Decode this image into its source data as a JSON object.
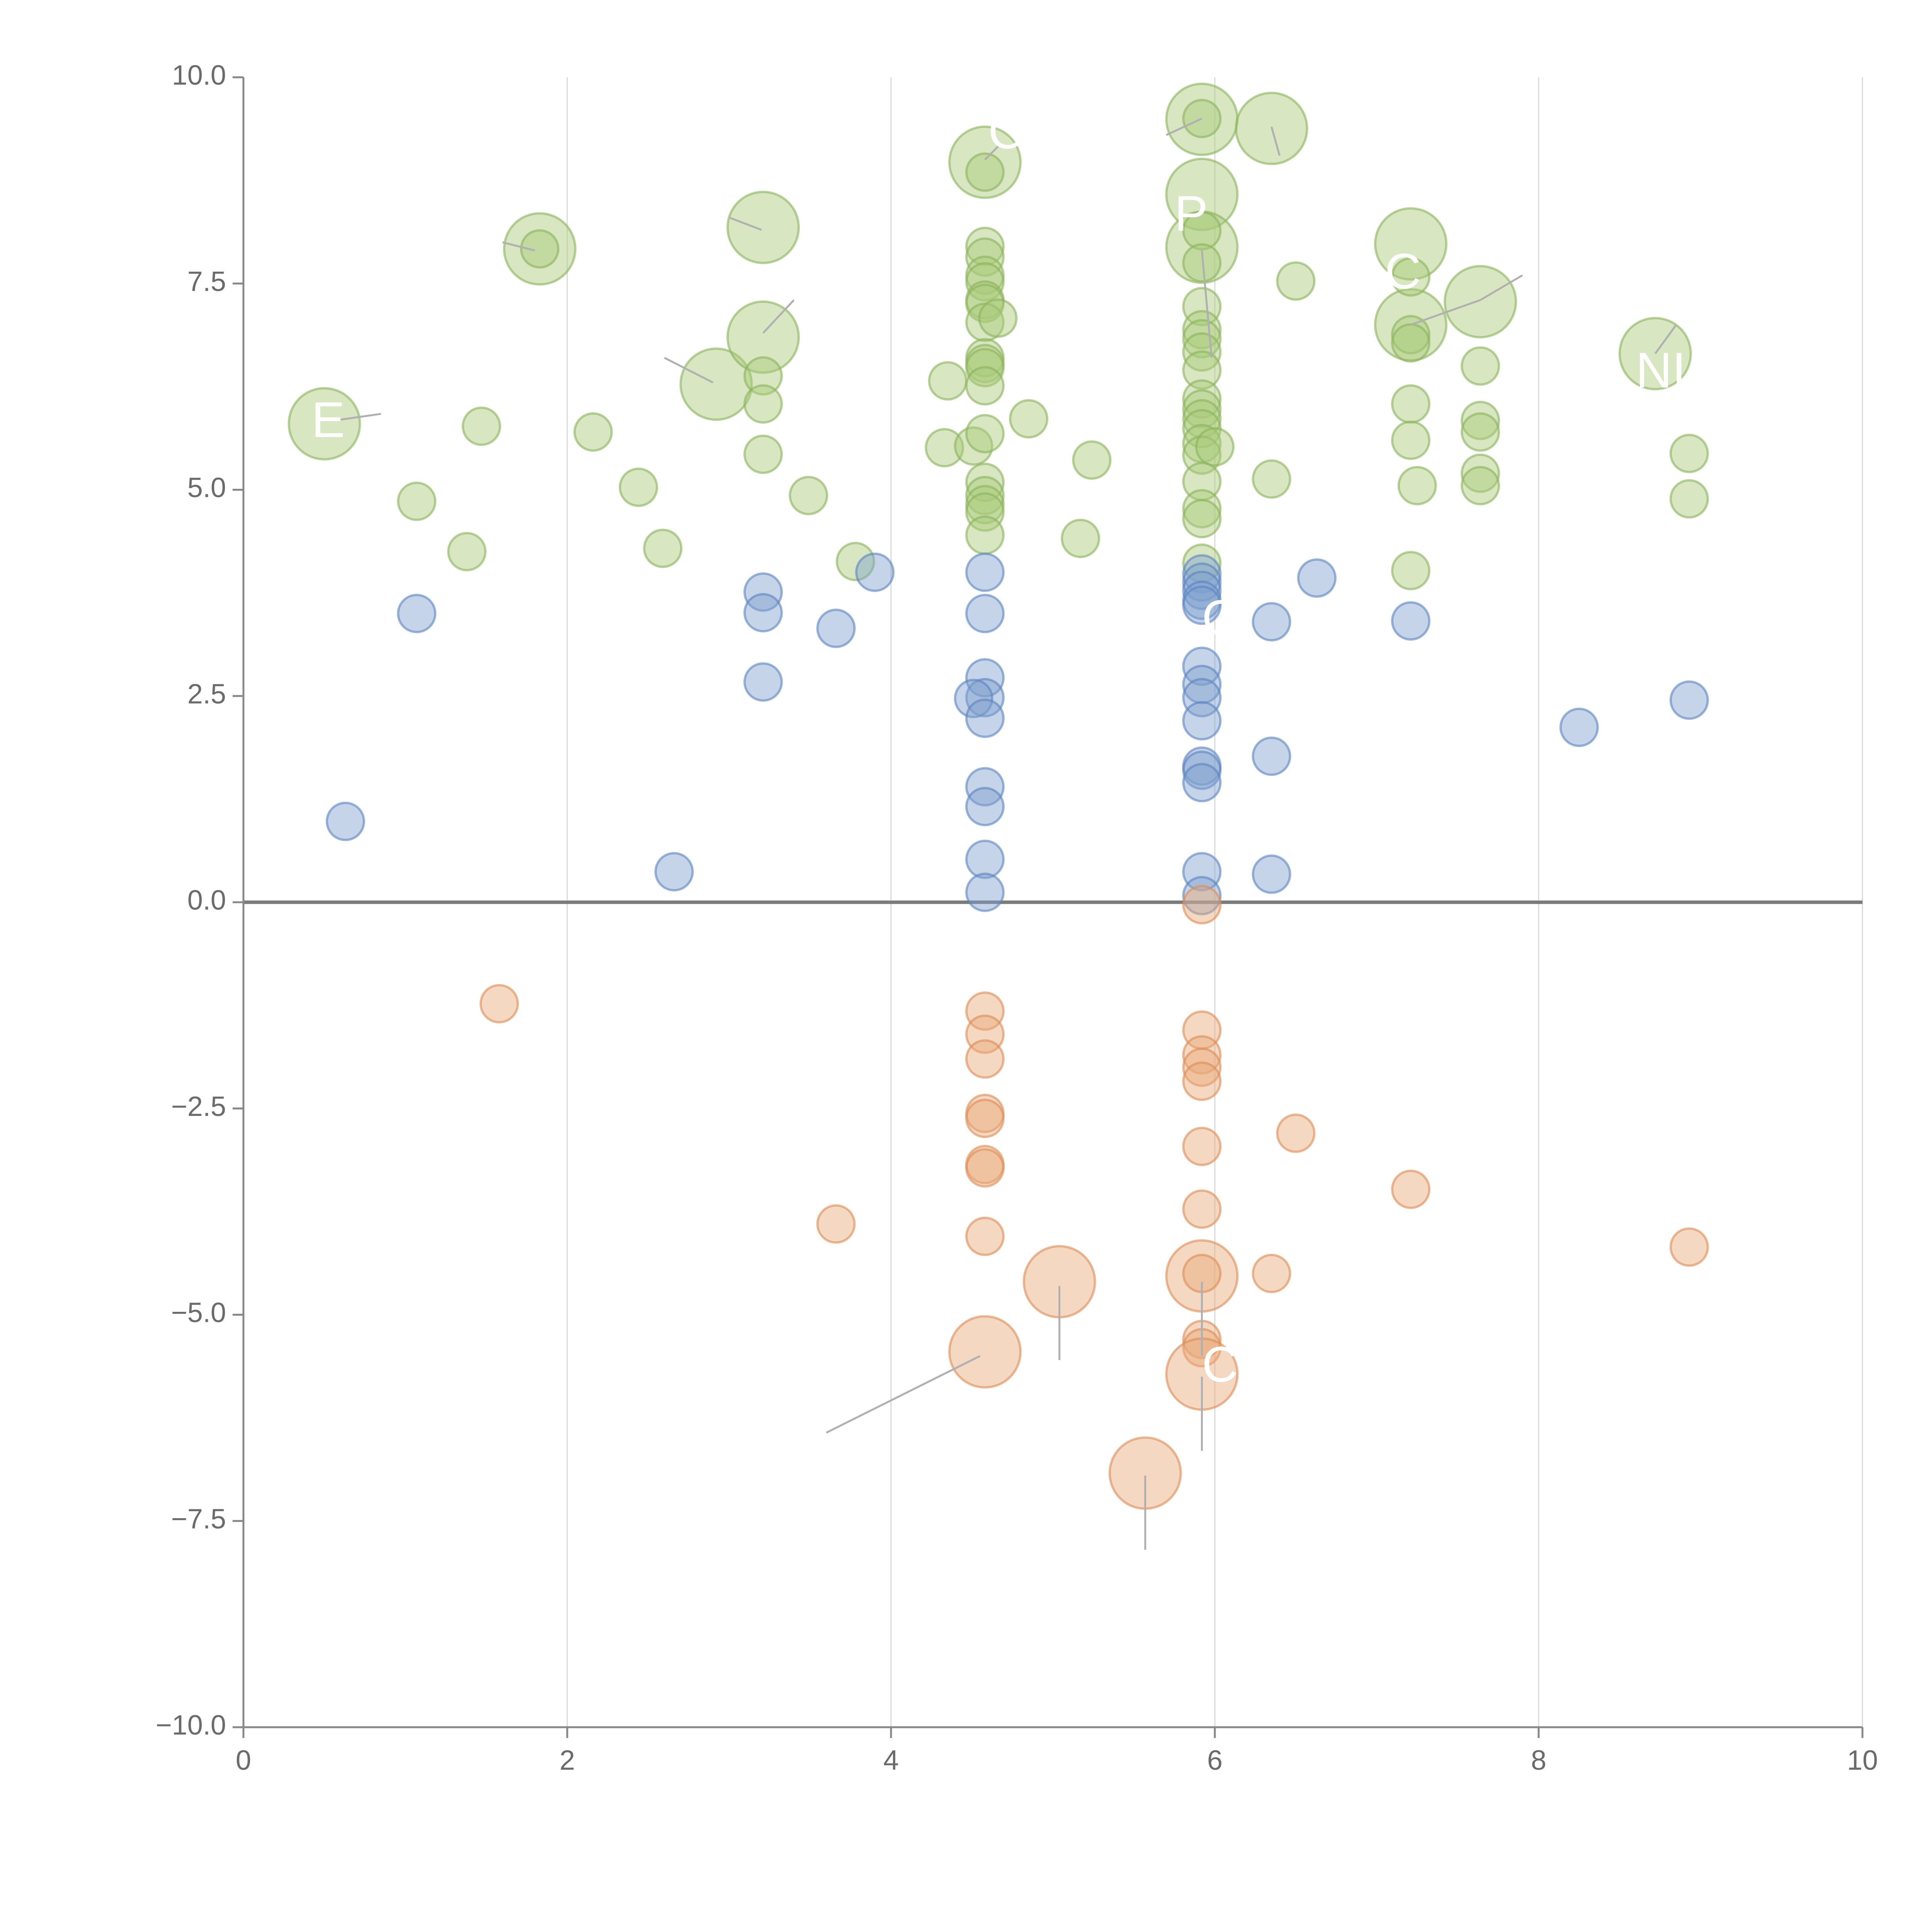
{
  "chart_data": {
    "type": "scatter",
    "title": "",
    "xlabel": "",
    "ylabel": "",
    "xlim": [
      0,
      10
    ],
    "ylim": [
      -10,
      10
    ],
    "x_ticks": [
      0,
      2,
      4,
      6,
      8,
      10
    ],
    "x_tick_labels": [
      "0",
      "2",
      "4",
      "6",
      "8",
      "10"
    ],
    "y_ticks": [
      10,
      7.5,
      5,
      2.5,
      0,
      -2.5,
      -5,
      -7.5,
      -10
    ],
    "y_tick_labels": [
      "10.0",
      "7.5",
      "5.0",
      "2.5",
      "0.0",
      "−2.5",
      "−5.0",
      "−7.5",
      "−10.0"
    ],
    "grid": "vertical lines at x ticks",
    "reference_line_y": 0,
    "colors": {
      "green_fill": "#a9c978",
      "green_stroke": "#8bb35a",
      "blue_fill": "#7ea0cf",
      "blue_stroke": "#5a84c0",
      "orange_fill": "#e8a878",
      "orange_stroke": "#dc8c55",
      "axis": "#888888",
      "grid": "#d9d9d9",
      "zero_line": "#7a7a7a",
      "connector": "#b0b0b0",
      "annotation_text": "#ffffff"
    },
    "series": [
      {
        "name": "green",
        "points": [
          {
            "x": 0.5,
            "y": 5.8,
            "size": "large"
          },
          {
            "x": 1.07,
            "y": 4.86,
            "size": "small"
          },
          {
            "x": 1.38,
            "y": 4.25,
            "size": "small"
          },
          {
            "x": 1.47,
            "y": 5.77,
            "size": "small"
          },
          {
            "x": 1.83,
            "y": 7.92,
            "size": "large"
          },
          {
            "x": 1.83,
            "y": 7.92,
            "size": "small"
          },
          {
            "x": 2.16,
            "y": 5.7,
            "size": "small"
          },
          {
            "x": 2.44,
            "y": 5.03,
            "size": "small"
          },
          {
            "x": 2.59,
            "y": 4.29,
            "size": "small"
          },
          {
            "x": 2.92,
            "y": 6.28,
            "size": "large"
          },
          {
            "x": 3.21,
            "y": 8.18,
            "size": "large"
          },
          {
            "x": 3.21,
            "y": 6.85,
            "size": "large"
          },
          {
            "x": 3.21,
            "y": 6.38,
            "size": "small"
          },
          {
            "x": 3.21,
            "y": 6.04,
            "size": "small"
          },
          {
            "x": 3.21,
            "y": 5.43,
            "size": "small"
          },
          {
            "x": 3.49,
            "y": 4.93,
            "size": "small"
          },
          {
            "x": 3.78,
            "y": 4.13,
            "size": "small"
          },
          {
            "x": 4.35,
            "y": 6.32,
            "size": "small"
          },
          {
            "x": 4.33,
            "y": 5.51,
            "size": "small"
          },
          {
            "x": 4.51,
            "y": 5.53,
            "size": "small"
          },
          {
            "x": 4.58,
            "y": 8.97,
            "size": "large"
          },
          {
            "x": 4.58,
            "y": 8.85,
            "size": "small"
          },
          {
            "x": 4.58,
            "y": 7.95,
            "size": "small"
          },
          {
            "x": 4.58,
            "y": 7.82,
            "size": "small"
          },
          {
            "x": 4.58,
            "y": 7.6,
            "size": "small"
          },
          {
            "x": 4.58,
            "y": 7.52,
            "size": "small"
          },
          {
            "x": 4.58,
            "y": 7.3,
            "size": "small"
          },
          {
            "x": 4.58,
            "y": 7.26,
            "size": "small"
          },
          {
            "x": 4.58,
            "y": 7.03,
            "size": "small"
          },
          {
            "x": 4.66,
            "y": 7.08,
            "size": "small"
          },
          {
            "x": 4.58,
            "y": 6.6,
            "size": "small"
          },
          {
            "x": 4.58,
            "y": 6.53,
            "size": "small"
          },
          {
            "x": 4.58,
            "y": 6.48,
            "size": "small"
          },
          {
            "x": 4.58,
            "y": 6.26,
            "size": "small"
          },
          {
            "x": 4.58,
            "y": 5.68,
            "size": "small"
          },
          {
            "x": 4.58,
            "y": 5.09,
            "size": "small"
          },
          {
            "x": 4.58,
            "y": 4.93,
            "size": "small"
          },
          {
            "x": 4.58,
            "y": 4.82,
            "size": "small"
          },
          {
            "x": 4.58,
            "y": 4.73,
            "size": "small"
          },
          {
            "x": 4.58,
            "y": 4.45,
            "size": "small"
          },
          {
            "x": 4.85,
            "y": 5.86,
            "size": "small"
          },
          {
            "x": 5.17,
            "y": 4.41,
            "size": "small"
          },
          {
            "x": 5.24,
            "y": 5.36,
            "size": "small"
          },
          {
            "x": 5.92,
            "y": 9.49,
            "size": "large"
          },
          {
            "x": 5.92,
            "y": 9.5,
            "size": "small"
          },
          {
            "x": 5.92,
            "y": 8.58,
            "size": "large"
          },
          {
            "x": 5.92,
            "y": 7.94,
            "size": "large"
          },
          {
            "x": 5.92,
            "y": 8.14,
            "size": "small"
          },
          {
            "x": 5.92,
            "y": 7.75,
            "size": "small"
          },
          {
            "x": 5.92,
            "y": 7.22,
            "size": "small"
          },
          {
            "x": 5.92,
            "y": 6.94,
            "size": "small"
          },
          {
            "x": 5.92,
            "y": 6.83,
            "size": "small"
          },
          {
            "x": 5.92,
            "y": 6.67,
            "size": "small"
          },
          {
            "x": 5.92,
            "y": 6.45,
            "size": "small"
          },
          {
            "x": 5.92,
            "y": 6.1,
            "size": "small"
          },
          {
            "x": 5.92,
            "y": 5.98,
            "size": "small"
          },
          {
            "x": 5.92,
            "y": 5.86,
            "size": "small"
          },
          {
            "x": 5.92,
            "y": 5.74,
            "size": "small"
          },
          {
            "x": 5.92,
            "y": 5.56,
            "size": "small"
          },
          {
            "x": 5.92,
            "y": 5.42,
            "size": "small"
          },
          {
            "x": 6.0,
            "y": 5.52,
            "size": "small"
          },
          {
            "x": 5.92,
            "y": 5.1,
            "size": "small"
          },
          {
            "x": 5.92,
            "y": 4.77,
            "size": "small"
          },
          {
            "x": 5.92,
            "y": 4.65,
            "size": "small"
          },
          {
            "x": 5.92,
            "y": 4.11,
            "size": "small"
          },
          {
            "x": 6.35,
            "y": 9.38,
            "size": "large"
          },
          {
            "x": 6.35,
            "y": 5.13,
            "size": "small"
          },
          {
            "x": 6.5,
            "y": 7.53,
            "size": "small"
          },
          {
            "x": 7.21,
            "y": 7.98,
            "size": "large"
          },
          {
            "x": 7.21,
            "y": 7.0,
            "size": "large"
          },
          {
            "x": 7.21,
            "y": 7.58,
            "size": "small"
          },
          {
            "x": 7.21,
            "y": 6.88,
            "size": "small"
          },
          {
            "x": 7.21,
            "y": 6.78,
            "size": "small"
          },
          {
            "x": 7.21,
            "y": 6.04,
            "size": "small"
          },
          {
            "x": 7.21,
            "y": 5.6,
            "size": "small"
          },
          {
            "x": 7.21,
            "y": 4.02,
            "size": "small"
          },
          {
            "x": 7.25,
            "y": 5.05,
            "size": "small"
          },
          {
            "x": 7.64,
            "y": 7.28,
            "size": "large"
          },
          {
            "x": 7.64,
            "y": 6.5,
            "size": "small"
          },
          {
            "x": 7.64,
            "y": 5.84,
            "size": "small"
          },
          {
            "x": 7.64,
            "y": 5.7,
            "size": "small"
          },
          {
            "x": 7.64,
            "y": 5.2,
            "size": "small"
          },
          {
            "x": 7.64,
            "y": 5.05,
            "size": "small"
          },
          {
            "x": 8.72,
            "y": 6.65,
            "size": "large"
          },
          {
            "x": 8.93,
            "y": 5.44,
            "size": "small"
          },
          {
            "x": 8.93,
            "y": 4.89,
            "size": "small"
          }
        ]
      },
      {
        "name": "blue",
        "points": [
          {
            "x": 0.63,
            "y": 0.98,
            "size": "small"
          },
          {
            "x": 1.07,
            "y": 3.5,
            "size": "small"
          },
          {
            "x": 2.66,
            "y": 0.37,
            "size": "small"
          },
          {
            "x": 3.21,
            "y": 3.76,
            "size": "small"
          },
          {
            "x": 3.21,
            "y": 3.51,
            "size": "small"
          },
          {
            "x": 3.21,
            "y": 2.67,
            "size": "small"
          },
          {
            "x": 3.66,
            "y": 3.32,
            "size": "small"
          },
          {
            "x": 3.9,
            "y": 4.0,
            "size": "small"
          },
          {
            "x": 4.58,
            "y": 4.0,
            "size": "small"
          },
          {
            "x": 4.58,
            "y": 3.5,
            "size": "small"
          },
          {
            "x": 4.58,
            "y": 2.72,
            "size": "small"
          },
          {
            "x": 4.58,
            "y": 2.48,
            "size": "small"
          },
          {
            "x": 4.51,
            "y": 2.47,
            "size": "small"
          },
          {
            "x": 4.58,
            "y": 2.23,
            "size": "small"
          },
          {
            "x": 4.58,
            "y": 1.4,
            "size": "small"
          },
          {
            "x": 4.58,
            "y": 1.16,
            "size": "small"
          },
          {
            "x": 4.58,
            "y": 0.52,
            "size": "small"
          },
          {
            "x": 4.58,
            "y": 0.12,
            "size": "small"
          },
          {
            "x": 5.92,
            "y": 3.98,
            "size": "small"
          },
          {
            "x": 5.92,
            "y": 3.88,
            "size": "small"
          },
          {
            "x": 5.92,
            "y": 3.78,
            "size": "small"
          },
          {
            "x": 5.92,
            "y": 3.66,
            "size": "small"
          },
          {
            "x": 5.92,
            "y": 3.6,
            "size": "small"
          },
          {
            "x": 5.92,
            "y": 2.86,
            "size": "small"
          },
          {
            "x": 5.92,
            "y": 2.64,
            "size": "small"
          },
          {
            "x": 5.92,
            "y": 2.48,
            "size": "small"
          },
          {
            "x": 5.92,
            "y": 2.2,
            "size": "small"
          },
          {
            "x": 5.92,
            "y": 1.65,
            "size": "small"
          },
          {
            "x": 5.92,
            "y": 1.6,
            "size": "small"
          },
          {
            "x": 5.92,
            "y": 1.45,
            "size": "small"
          },
          {
            "x": 5.92,
            "y": 0.37,
            "size": "small"
          },
          {
            "x": 5.92,
            "y": 0.08,
            "size": "small"
          },
          {
            "x": 6.35,
            "y": 3.4,
            "size": "small"
          },
          {
            "x": 6.35,
            "y": 1.77,
            "size": "small"
          },
          {
            "x": 6.35,
            "y": 0.34,
            "size": "small"
          },
          {
            "x": 6.63,
            "y": 3.93,
            "size": "small"
          },
          {
            "x": 7.21,
            "y": 3.41,
            "size": "small"
          },
          {
            "x": 8.25,
            "y": 2.12,
            "size": "small"
          },
          {
            "x": 8.93,
            "y": 2.45,
            "size": "small"
          }
        ]
      },
      {
        "name": "orange",
        "points": [
          {
            "x": 1.58,
            "y": -1.23,
            "size": "small"
          },
          {
            "x": 3.66,
            "y": -3.9,
            "size": "small"
          },
          {
            "x": 4.58,
            "y": -1.32,
            "size": "small"
          },
          {
            "x": 4.58,
            "y": -1.6,
            "size": "small"
          },
          {
            "x": 4.58,
            "y": -1.9,
            "size": "small"
          },
          {
            "x": 4.58,
            "y": -2.56,
            "size": "small"
          },
          {
            "x": 4.58,
            "y": -2.62,
            "size": "small"
          },
          {
            "x": 4.58,
            "y": -3.18,
            "size": "small"
          },
          {
            "x": 4.58,
            "y": -3.22,
            "size": "small"
          },
          {
            "x": 4.58,
            "y": -4.05,
            "size": "small"
          },
          {
            "x": 4.58,
            "y": -5.45,
            "size": "large"
          },
          {
            "x": 5.04,
            "y": -4.6,
            "size": "large"
          },
          {
            "x": 5.57,
            "y": -6.92,
            "size": "large"
          },
          {
            "x": 5.92,
            "y": -0.03,
            "size": "small"
          },
          {
            "x": 5.92,
            "y": -1.55,
            "size": "small"
          },
          {
            "x": 5.92,
            "y": -1.85,
            "size": "small"
          },
          {
            "x": 5.92,
            "y": -2.0,
            "size": "small"
          },
          {
            "x": 5.92,
            "y": -2.17,
            "size": "small"
          },
          {
            "x": 5.92,
            "y": -2.96,
            "size": "small"
          },
          {
            "x": 5.92,
            "y": -3.72,
            "size": "small"
          },
          {
            "x": 5.92,
            "y": -4.53,
            "size": "large"
          },
          {
            "x": 5.92,
            "y": -4.5,
            "size": "small"
          },
          {
            "x": 5.92,
            "y": -5.3,
            "size": "small"
          },
          {
            "x": 5.92,
            "y": -5.4,
            "size": "small"
          },
          {
            "x": 5.92,
            "y": -5.72,
            "size": "large"
          },
          {
            "x": 6.35,
            "y": -4.5,
            "size": "small"
          },
          {
            "x": 6.5,
            "y": -2.8,
            "size": "small"
          },
          {
            "x": 7.21,
            "y": -3.48,
            "size": "small"
          },
          {
            "x": 8.93,
            "y": -4.18,
            "size": "small"
          }
        ]
      }
    ],
    "connectors": [
      {
        "x1": 0.6,
        "y1": 5.85,
        "x2": 0.85,
        "y2": 5.92
      },
      {
        "x1": 1.6,
        "y1": 8.0,
        "x2": 1.8,
        "y2": 7.9
      },
      {
        "x1": 2.6,
        "y1": 6.6,
        "x2": 2.9,
        "y2": 6.3
      },
      {
        "x1": 3.0,
        "y1": 8.3,
        "x2": 3.2,
        "y2": 8.15
      },
      {
        "x1": 3.21,
        "y1": 6.9,
        "x2": 3.4,
        "y2": 7.3
      },
      {
        "x1": 4.58,
        "y1": 9.0,
        "x2": 4.68,
        "y2": 9.2
      },
      {
        "x1": 5.92,
        "y1": 9.5,
        "x2": 5.7,
        "y2": 9.3
      },
      {
        "x1": 5.92,
        "y1": 7.9,
        "x2": 5.98,
        "y2": 6.6
      },
      {
        "x1": 6.35,
        "y1": 9.4,
        "x2": 6.4,
        "y2": 9.05
      },
      {
        "x1": 7.21,
        "y1": 7.0,
        "x2": 7.64,
        "y2": 7.3
      },
      {
        "x1": 7.64,
        "y1": 7.3,
        "x2": 7.9,
        "y2": 7.6
      },
      {
        "x1": 8.72,
        "y1": 6.65,
        "x2": 8.85,
        "y2": 7.0
      },
      {
        "x1": 4.55,
        "y1": -5.5,
        "x2": 3.6,
        "y2": -6.43
      },
      {
        "x1": 5.04,
        "y1": -4.65,
        "x2": 5.04,
        "y2": -5.55
      },
      {
        "x1": 5.92,
        "y1": -4.6,
        "x2": 5.92,
        "y2": -5.5
      },
      {
        "x1": 5.92,
        "y1": -5.75,
        "x2": 5.92,
        "y2": -6.65
      },
      {
        "x1": 5.57,
        "y1": -6.95,
        "x2": 5.57,
        "y2": -7.85
      }
    ],
    "annotations": [
      {
        "text": "E",
        "x": 0.42,
        "y": 5.8
      },
      {
        "text": "C",
        "x": 4.6,
        "y": 9.3
      },
      {
        "text": "P",
        "x": 5.75,
        "y": 8.3
      },
      {
        "text": "C",
        "x": 7.05,
        "y": 7.6
      },
      {
        "text": "NI",
        "x": 8.6,
        "y": 6.4
      },
      {
        "text": "G",
        "x": 5.92,
        "y": 3.4
      },
      {
        "text": "C",
        "x": 5.92,
        "y": -5.65
      }
    ]
  }
}
